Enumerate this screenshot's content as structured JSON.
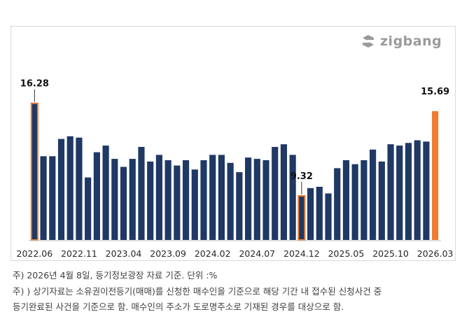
{
  "brand": {
    "name": "zigbang",
    "logo_icon": "zigbang-logo-icon",
    "color": "#9a9a9a"
  },
  "notes": {
    "line1": "주) 2026년 4월 8일, 등기정보광장 자료 기준. 단위 :%",
    "line2": "주) ) 상기자료는 소유권이전등기(매매)를 신청한 매수인을 기준으로 해당 기간 내 접수된 신청사건 중",
    "line3": "등기완료된 사건을 기준으로 함. 매수인의 주소가 도로명주소로 기재된 경우를 대상으로 함."
  },
  "chart_data": {
    "type": "bar",
    "categories": [
      "2022.06",
      "2022.07",
      "2022.08",
      "2022.09",
      "2022.10",
      "2022.11",
      "2022.12",
      "2023.01",
      "2023.02",
      "2023.03",
      "2023.04",
      "2023.05",
      "2023.06",
      "2023.07",
      "2023.08",
      "2023.09",
      "2023.10",
      "2023.11",
      "2023.12",
      "2024.01",
      "2024.02",
      "2024.03",
      "2024.04",
      "2024.05",
      "2024.06",
      "2024.07",
      "2024.08",
      "2024.09",
      "2024.10",
      "2024.11",
      "2024.12",
      "2025.01",
      "2025.02",
      "2025.03",
      "2025.04",
      "2025.05",
      "2025.06",
      "2025.07",
      "2025.08",
      "2025.09",
      "2025.10",
      "2025.11",
      "2025.12",
      "2026.01",
      "2026.02",
      "2026.03"
    ],
    "tick_labels": [
      "2022.06",
      "2022.11",
      "2023.04",
      "2023.09",
      "2024.02",
      "2024.07",
      "2024.12",
      "2025.05",
      "2025.10",
      "2026.03"
    ],
    "values": [
      16.28,
      12.3,
      12.3,
      13.6,
      13.8,
      13.7,
      10.7,
      12.6,
      13.1,
      12.1,
      11.5,
      12.1,
      13.0,
      11.9,
      12.4,
      12.0,
      11.6,
      12.0,
      11.3,
      12.0,
      12.4,
      12.4,
      11.8,
      11.1,
      12.2,
      12.1,
      12.0,
      13.0,
      13.2,
      12.4,
      9.32,
      9.9,
      10.0,
      9.5,
      11.4,
      12.0,
      11.7,
      12.0,
      12.8,
      11.9,
      13.2,
      13.1,
      13.3,
      13.5,
      13.4,
      15.69
    ],
    "ylim": [
      6.0,
      17.5
    ],
    "colors": {
      "default": "#1f3864",
      "highlight": "#ed7d31",
      "outline": "#ed7d31"
    },
    "annotations": [
      {
        "index": 0,
        "label": "16.28",
        "style": "outlined"
      },
      {
        "index": 30,
        "label": "9.32",
        "style": "outlined"
      },
      {
        "index": 45,
        "label": "15.69",
        "style": "filled"
      }
    ],
    "grid": false,
    "legend": "none"
  }
}
